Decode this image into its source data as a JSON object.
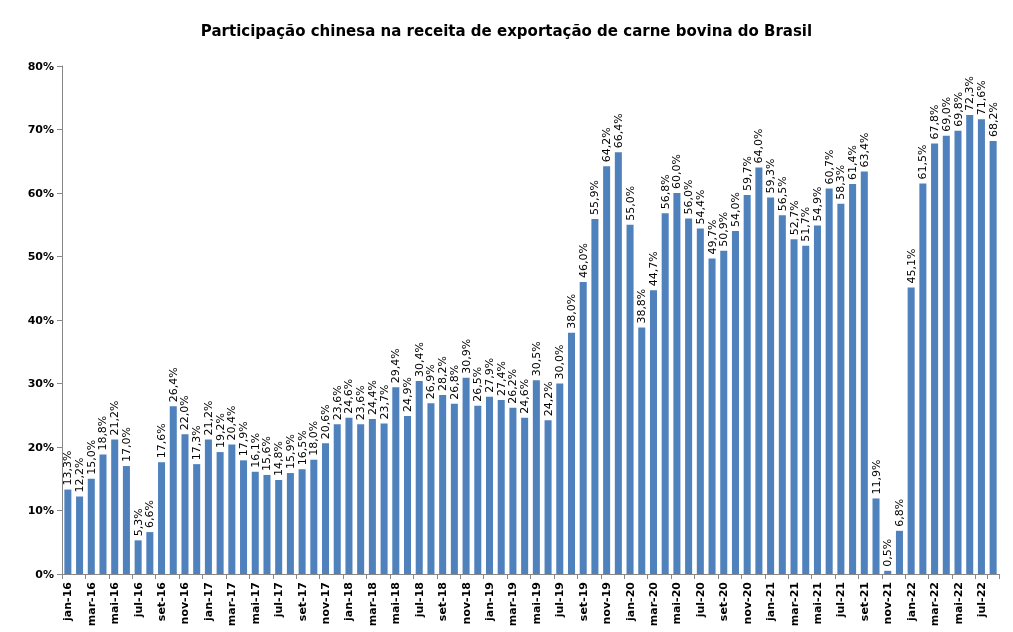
{
  "chart_data": {
    "type": "bar",
    "title": "Participação chinesa na receita de exportação de carne bovina do Brasil",
    "categories": [
      "jan-16",
      null,
      "mar-16",
      null,
      "mai-16",
      null,
      "jul-16",
      null,
      "set-16",
      null,
      "nov-16",
      null,
      "jan-17",
      null,
      "mar-17",
      null,
      "mai-17",
      null,
      "jul-17",
      null,
      "set-17",
      null,
      "nov-17",
      null,
      "jan-18",
      null,
      "mar-18",
      null,
      "mai-18",
      null,
      "jul-18",
      null,
      "set-18",
      null,
      "nov-18",
      null,
      "jan-19",
      null,
      "mar-19",
      null,
      "mai-19",
      null,
      "jul-19",
      null,
      "set-19",
      null,
      "nov-19",
      null,
      "jan-20",
      null,
      "mar-20",
      null,
      "mai-20",
      null,
      "jul-20",
      null,
      "set-20",
      null,
      "nov-20",
      null,
      "jan-21",
      null,
      "mar-21",
      null,
      "mai-21",
      null,
      "jul-21",
      null,
      "set-21",
      null,
      "nov-21",
      null,
      "jan-22",
      null,
      "mar-22",
      null,
      "mai-22",
      null,
      "jul-22",
      null
    ],
    "values": [
      13.3,
      12.2,
      15.0,
      18.8,
      21.2,
      17.0,
      5.3,
      6.6,
      17.6,
      26.4,
      22.0,
      17.3,
      21.2,
      19.2,
      20.4,
      17.9,
      16.1,
      15.6,
      14.8,
      15.9,
      16.5,
      18.0,
      20.6,
      23.6,
      24.6,
      23.6,
      24.4,
      23.7,
      29.4,
      24.9,
      30.4,
      26.9,
      28.2,
      26.8,
      30.9,
      26.5,
      27.9,
      27.4,
      26.2,
      24.6,
      30.5,
      24.2,
      30.0,
      38.0,
      46.0,
      55.9,
      64.2,
      66.4,
      55.0,
      38.8,
      44.7,
      56.8,
      60.0,
      56.0,
      54.4,
      49.7,
      50.9,
      54.0,
      59.7,
      64.0,
      59.3,
      56.5,
      52.7,
      51.7,
      54.9,
      60.7,
      58.3,
      61.4,
      63.4,
      11.9,
      0.5,
      6.8,
      45.1,
      61.5,
      67.8,
      69.0,
      69.8,
      72.3,
      71.6,
      68.2
    ],
    "value_labels": [
      "13,3%",
      "12,2%",
      "15,0%",
      "18,8%",
      "21,2%",
      "17,0%",
      "5,3%",
      "6,6%",
      "17,6%",
      "26,4%",
      "22,0%",
      "17,3%",
      "21,2%",
      "19,2%",
      "20,4%",
      "17,9%",
      "16,1%",
      "15,6%",
      "14,8%",
      "15,9%",
      "16,5%",
      "18,0%",
      "20,6%",
      "23,6%",
      "24,6%",
      "23,6%",
      "24,4%",
      "23,7%",
      "29,4%",
      "24,9%",
      "30,4%",
      "26,9%",
      "28,2%",
      "26,8%",
      "30,9%",
      "26,5%",
      "27,9%",
      "27,4%",
      "26,2%",
      "24,6%",
      "30,5%",
      "24,2%",
      "30,0%",
      "38,0%",
      "46,0%",
      "55,9%",
      "64,2%",
      "66,4%",
      "55,0%",
      "38,8%",
      "44,7%",
      "56,8%",
      "60,0%",
      "56,0%",
      "54,4%",
      "49,7%",
      "50,9%",
      "54,0%",
      "59,7%",
      "64,0%",
      "59,3%",
      "56,5%",
      "52,7%",
      "51,7%",
      "54,9%",
      "60,7%",
      "58,3%",
      "61,4%",
      "63,4%",
      "11,9%",
      "0,5%",
      "6,8%",
      "45,1%",
      "61,5%",
      "67,8%",
      "69,0%",
      "69,8%",
      "72,3%",
      "71,6%",
      "68,2%"
    ],
    "color": "#4f81bd",
    "ylim": [
      0,
      80
    ],
    "yticks": [
      {
        "value": 0,
        "label": "0%"
      },
      {
        "value": 10,
        "label": "10%"
      },
      {
        "value": 20,
        "label": "20%"
      },
      {
        "value": 30,
        "label": "30%"
      },
      {
        "value": 40,
        "label": "40%"
      },
      {
        "value": 50,
        "label": "50%"
      },
      {
        "value": 60,
        "label": "60%"
      },
      {
        "value": 70,
        "label": "70%"
      },
      {
        "value": 80,
        "label": "80%"
      }
    ],
    "grid": false,
    "legend": false
  }
}
